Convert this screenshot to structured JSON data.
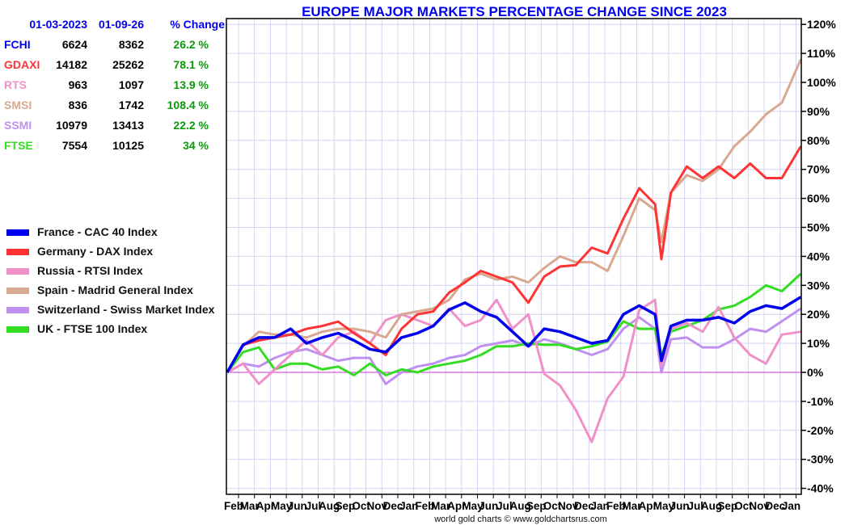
{
  "table": {
    "headers": [
      "01-03-2023",
      "01-09-26",
      "% Change"
    ],
    "rows": [
      {
        "symbol": "FCHI",
        "color": "#0000ee",
        "start": "6624",
        "end": "8362",
        "change": "26.2 %"
      },
      {
        "symbol": "GDAXI",
        "color": "#ff3333",
        "start": "14182",
        "end": "25262",
        "change": "78.1 %"
      },
      {
        "symbol": "RTS",
        "color": "#f090c8",
        "start": "963",
        "end": "1097",
        "change": "13.9 %"
      },
      {
        "symbol": "SMSI",
        "color": "#d8a890",
        "start": "836",
        "end": "1742",
        "change": "108.4 %"
      },
      {
        "symbol": "SSMI",
        "color": "#c090f0",
        "start": "10979",
        "end": "13413",
        "change": "22.2 %"
      },
      {
        "symbol": "FTSE",
        "color": "#33dd22",
        "start": "7554",
        "end": "10125",
        "change": "34 %"
      }
    ]
  },
  "footer": "world gold charts © www.goldchartsrus.com",
  "chart_data": {
    "type": "line",
    "title": "EUROPE MAJOR MARKETS PERCENTAGE CHANGE SINCE 2023",
    "xlabel": "",
    "ylabel": "",
    "ylim": [
      -40,
      120
    ],
    "yticks": [
      -40,
      -30,
      -20,
      -10,
      0,
      10,
      20,
      30,
      40,
      50,
      60,
      70,
      80,
      90,
      100,
      110,
      120
    ],
    "ytick_labels": [
      "-40%",
      "-30%",
      "-20%",
      "-10%",
      "0%",
      "10%",
      "20%",
      "30%",
      "40%",
      "50%",
      "60%",
      "70%",
      "80%",
      "90%",
      "100%",
      "110%",
      "120%"
    ],
    "x_unit": "months since 2023-01-03",
    "xlim": [
      0,
      36.2
    ],
    "month_labels": [
      "Feb",
      "Mar",
      "Apr",
      "May",
      "Jun",
      "Jul",
      "Aug",
      "Sep",
      "Oct",
      "Nov",
      "Dec",
      "Jan",
      "Feb",
      "Mar",
      "Apr",
      "May",
      "Jun",
      "Jul",
      "Aug",
      "Sep",
      "Oct",
      "Nov",
      "Dec",
      "Jan",
      "Feb",
      "Mar",
      "Apr",
      "May",
      "Jun",
      "Jul",
      "Aug",
      "Sep",
      "Oct",
      "Nov",
      "Dec",
      "Jan"
    ],
    "grid": true,
    "legend_position": "left",
    "x": [
      0,
      1,
      2,
      3,
      4,
      5,
      6,
      7,
      8,
      9,
      10,
      11,
      12,
      13,
      14,
      15,
      16,
      17,
      18,
      19,
      20,
      21,
      22,
      23,
      24,
      25,
      26,
      27,
      27.4,
      28,
      29,
      30,
      31,
      32,
      33,
      34,
      35,
      36.2
    ],
    "series": [
      {
        "name": "France - CAC 40 Index",
        "color": "#0000ee",
        "width": 3.5,
        "values": [
          0,
          9.5,
          12,
          12,
          15,
          10,
          12,
          13.5,
          11,
          8,
          7,
          12,
          13.5,
          16,
          21.6,
          24,
          21,
          19,
          14,
          9,
          15,
          14,
          12,
          10,
          11,
          20,
          23,
          20,
          4,
          16,
          18,
          18,
          19,
          17,
          21,
          23,
          22,
          26
        ]
      },
      {
        "name": "Germany - DAX Index",
        "color": "#ff3333",
        "width": 3,
        "values": [
          0,
          9.5,
          11,
          12,
          13,
          15,
          16,
          17.5,
          13.5,
          10,
          6,
          15,
          20,
          21,
          27.5,
          31,
          35,
          33,
          31,
          24,
          33,
          36.5,
          37,
          43,
          41,
          53,
          63.5,
          58,
          39,
          62,
          71,
          67,
          71,
          67,
          72,
          67,
          67,
          78
        ]
      },
      {
        "name": "Russia - RTSI Index",
        "color": "#f090c8",
        "width": 3,
        "values": [
          0,
          3,
          -4,
          1,
          6,
          11,
          6,
          12,
          14,
          10,
          18,
          20,
          18,
          16,
          22,
          16,
          18,
          25,
          15,
          20,
          -0.5,
          -4.5,
          -13,
          -24,
          -9,
          -1.5,
          21.5,
          25,
          2,
          15,
          17,
          14,
          22.5,
          12,
          6,
          3,
          13,
          14
        ]
      },
      {
        "name": "Spain - Madrid General Index",
        "color": "#d8a890",
        "width": 3,
        "values": [
          0,
          9,
          14,
          13,
          13,
          12,
          14,
          15,
          15,
          14,
          12,
          20,
          21,
          22,
          25,
          32,
          34,
          32,
          33,
          31,
          36,
          40,
          38,
          38,
          35,
          47,
          60,
          56,
          45,
          62,
          68,
          66,
          70,
          78,
          83,
          89,
          93,
          108
        ]
      },
      {
        "name": "Switzerland - Swiss Market Index",
        "color": "#c090f0",
        "width": 3,
        "values": [
          0,
          3,
          2,
          5,
          7,
          8,
          6,
          4,
          5,
          5,
          -4,
          0,
          2,
          3,
          5,
          6,
          9,
          10,
          11,
          9,
          11.4,
          10,
          8,
          6,
          8,
          15,
          19,
          15,
          0,
          11.4,
          12,
          8.6,
          8.6,
          11.4,
          15,
          14,
          17.6,
          22
        ]
      },
      {
        "name": "UK - FTSE 100 Index",
        "color": "#33dd22",
        "width": 3,
        "values": [
          0,
          7,
          8.6,
          1,
          3,
          3,
          1,
          2,
          -1,
          3,
          -1,
          1,
          0,
          2,
          3,
          4,
          6,
          9,
          9,
          10,
          9.5,
          9.5,
          8,
          9,
          10.6,
          17.6,
          15,
          15,
          6,
          14,
          16,
          18,
          21.7,
          23,
          26,
          30,
          28,
          34
        ]
      }
    ],
    "draw_order": [
      4,
      5,
      2,
      3,
      1,
      0
    ]
  }
}
